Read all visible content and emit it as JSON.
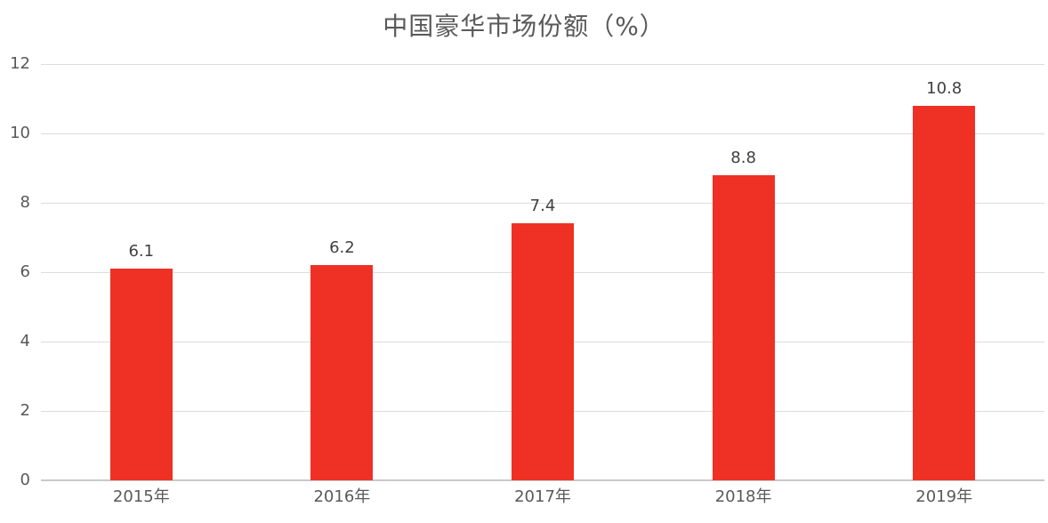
{
  "chart_data": {
    "type": "bar",
    "title": "中国豪华市场份额（%）",
    "categories": [
      "2015年",
      "2016年",
      "2017年",
      "2018年",
      "2019年"
    ],
    "values": [
      6.1,
      6.2,
      7.4,
      8.8,
      10.8
    ],
    "value_labels": [
      "6.1",
      "6.2",
      "7.4",
      "8.8",
      "10.8"
    ],
    "xlabel": "",
    "ylabel": "",
    "ylim": [
      0,
      12
    ],
    "yticks": [
      0,
      2,
      4,
      6,
      8,
      10,
      12
    ],
    "grid": "horizontal",
    "legend_position": "none",
    "colors": {
      "bar": "#EE3124",
      "title_text": "#595959",
      "axis_text": "#595959",
      "value_text": "#404040",
      "gridline": "#DCDCDC",
      "axis_line": "#C9C9C9",
      "background": "#FFFFFF"
    }
  }
}
